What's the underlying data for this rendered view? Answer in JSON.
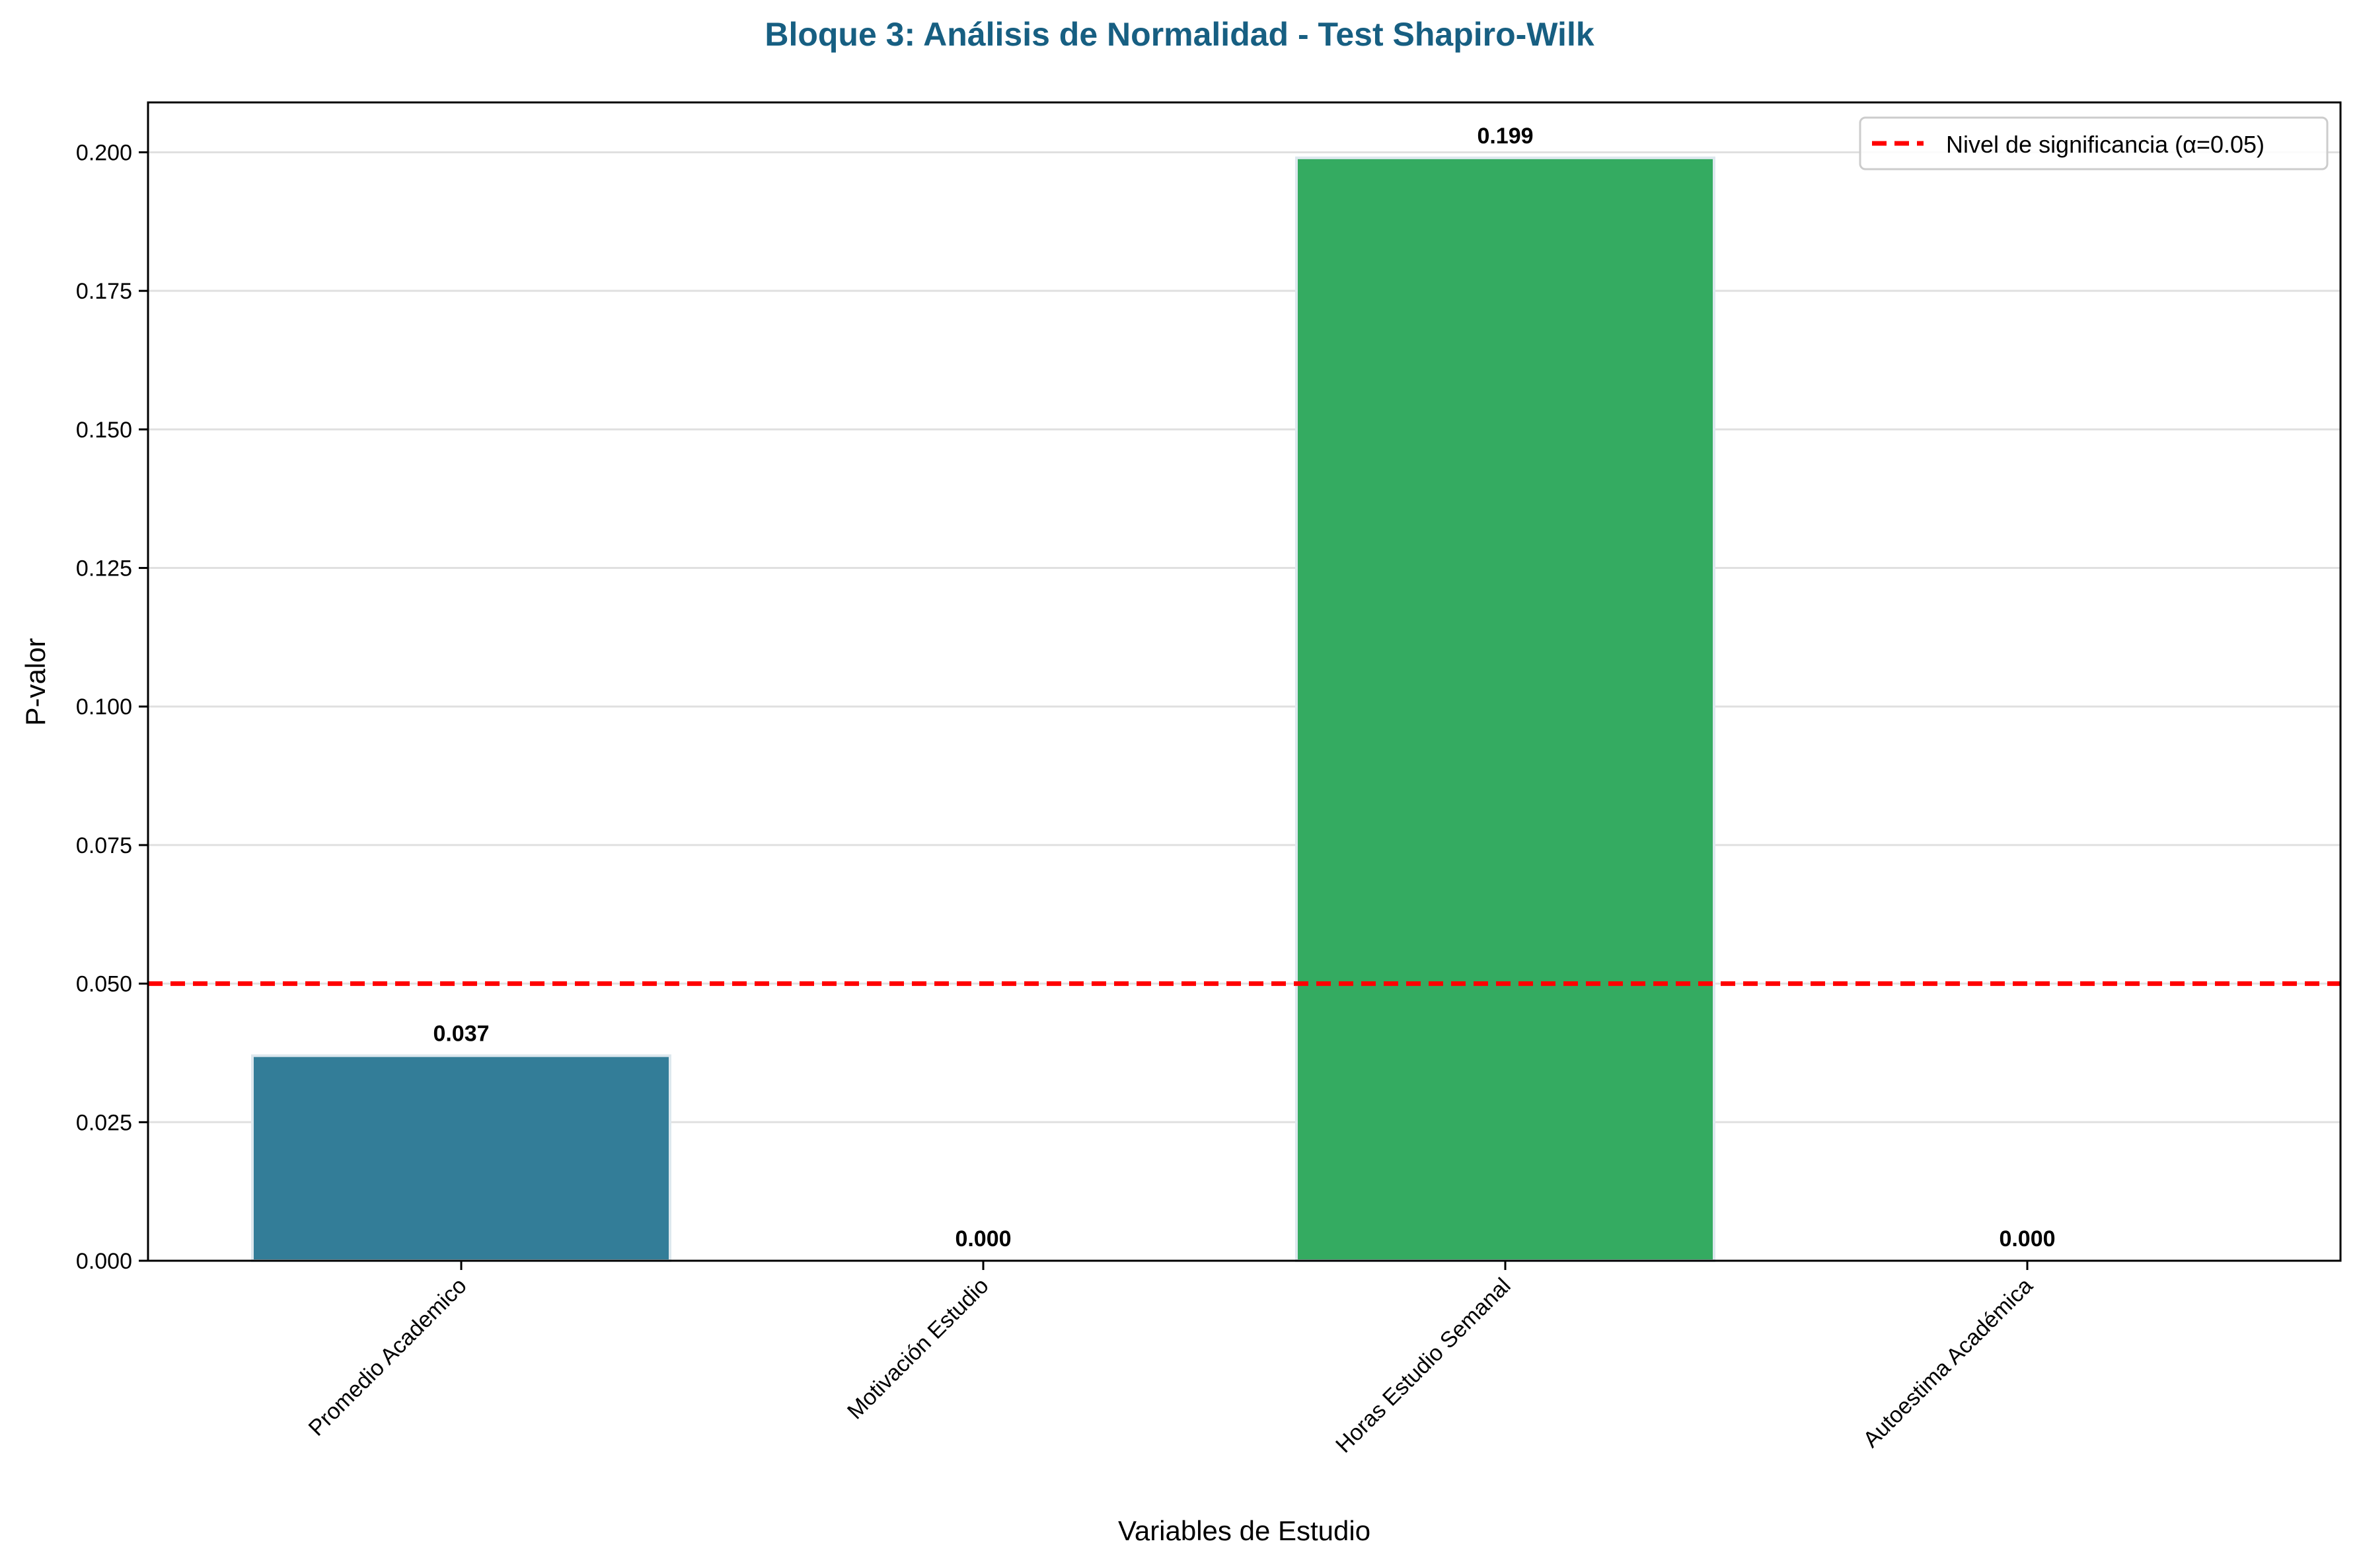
{
  "chart_data": {
    "type": "bar",
    "title": "Bloque 3: Análisis de Normalidad - Test Shapiro-Wilk",
    "xlabel": "Variables de Estudio",
    "ylabel": "P-valor",
    "categories": [
      "Promedio Academico",
      "Motivación Estudio",
      "Horas Estudio Semanal",
      "Autoestima Académica"
    ],
    "values": [
      0.037,
      0.0,
      0.199,
      0.0
    ],
    "value_labels": [
      "0.037",
      "0.000",
      "0.199",
      "0.000"
    ],
    "bar_colors": [
      "#337d98",
      "#c0392b",
      "#34ab61",
      "#c0392b"
    ],
    "ylim": [
      0,
      0.209
    ],
    "yticks": [
      0.0,
      0.025,
      0.05,
      0.075,
      0.1,
      0.125,
      0.15,
      0.175,
      0.2
    ],
    "ytick_labels": [
      "0.000",
      "0.025",
      "0.050",
      "0.075",
      "0.100",
      "0.125",
      "0.150",
      "0.175",
      "0.200"
    ],
    "grid": "horizontal",
    "reference_line": {
      "value": 0.05,
      "color": "#ff0000",
      "style": "dashed",
      "label": "Nivel de significancia (α=0.05)"
    },
    "legend": {
      "position": "top-right",
      "entries": [
        "Nivel de significancia (α=0.05)"
      ]
    },
    "colors": {
      "title": "#175f82",
      "axis": "#000000",
      "grid": "#e0e0e0"
    }
  }
}
